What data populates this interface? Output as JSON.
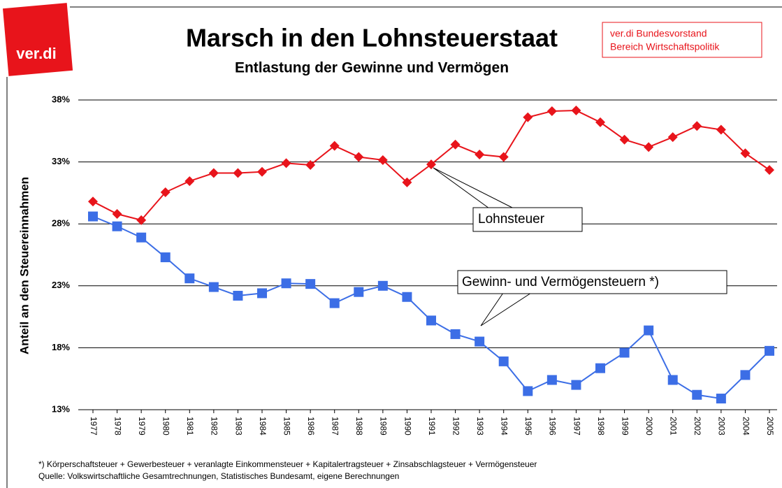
{
  "chart_data": {
    "type": "line",
    "logo": "ver.di",
    "title": "Marsch in den Lohnsteuerstaat",
    "subtitle": "Entlastung der Gewinne und Vermögen",
    "publisher": [
      "ver.di Bundesvorstand",
      "Bereich Wirtschaftspolitik"
    ],
    "y_label": "Anteil an den Steuereinnahmen",
    "categories": [
      "1977",
      "1978",
      "1979",
      "1980",
      "1981",
      "1982",
      "1983",
      "1984",
      "1985",
      "1986",
      "1987",
      "1988",
      "1989",
      "1990",
      "1991",
      "1992",
      "1993",
      "1994",
      "1995",
      "1996",
      "1997",
      "1998",
      "1999",
      "2000",
      "2001",
      "2002",
      "2003",
      "2004",
      "2005"
    ],
    "series": [
      {
        "name": "Lohnsteuer",
        "color": "#e8141b",
        "marker": "diamond",
        "values": [
          29.8,
          28.8,
          28.3,
          30.55,
          31.45,
          32.1,
          32.1,
          32.2,
          32.9,
          32.75,
          34.3,
          33.4,
          33.15,
          31.35,
          32.8,
          34.4,
          33.6,
          33.4,
          36.6,
          37.1,
          37.15,
          36.2,
          34.8,
          34.2,
          35.0,
          35.9,
          35.6,
          33.7,
          32.35
        ]
      },
      {
        "name": "Gewinn- und Vermögensteuern *)",
        "color": "#3c6ee6",
        "marker": "square",
        "values": [
          28.6,
          27.8,
          26.9,
          25.3,
          23.6,
          22.9,
          22.2,
          22.4,
          23.2,
          23.15,
          21.6,
          22.5,
          23.0,
          22.1,
          20.2,
          19.1,
          18.5,
          16.9,
          14.5,
          15.4,
          15.0,
          16.35,
          17.6,
          19.4,
          15.4,
          14.2,
          13.9,
          15.8,
          17.75
        ]
      }
    ],
    "ylim": [
      13,
      38
    ],
    "yticks": [
      {
        "value": 13,
        "label": "13%"
      },
      {
        "value": 18,
        "label": "18%"
      },
      {
        "value": 23,
        "label": "23%"
      },
      {
        "value": 28,
        "label": "28%"
      },
      {
        "value": 33,
        "label": "33%"
      },
      {
        "value": 38,
        "label": "38%"
      }
    ],
    "grid": true,
    "footnotes": [
      "*) Körperschaftsteuer + Gewerbesteuer + veranlagte Einkommensteuer + Kapitalertragsteuer + Zinsabschlagsteuer + Vermögensteuer",
      "Quelle: Volkswirtschaftliche Gesamtrechnungen, Statistisches Bundesamt, eigene Berechnungen"
    ]
  }
}
